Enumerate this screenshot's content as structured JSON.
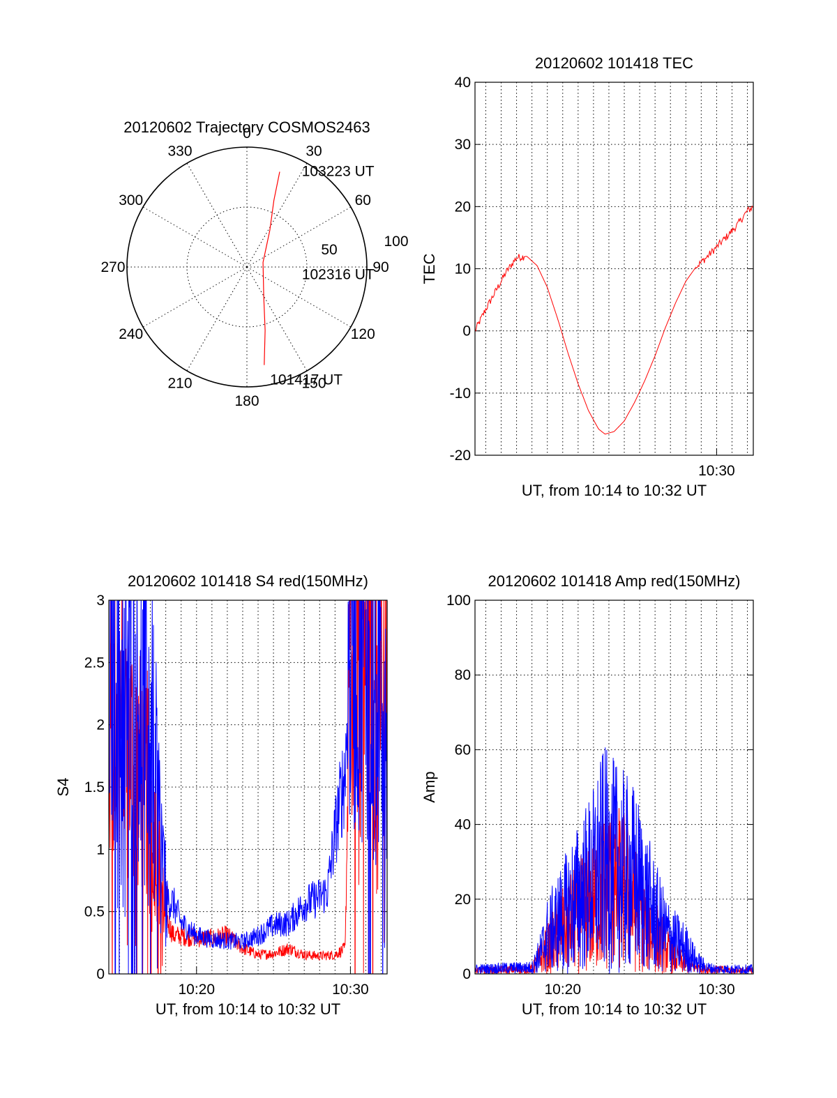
{
  "figure": {
    "title": ""
  },
  "chart_data": [
    {
      "id": "trajectory",
      "type": "polar",
      "title": "20120602 Trajectory COSMOS2463",
      "azimuth_labels": [
        "0",
        "30",
        "60",
        "90",
        "120",
        "150",
        "180",
        "210",
        "240",
        "270",
        "300",
        "330"
      ],
      "radius_labels": [
        "50",
        "100"
      ],
      "r_max": 100,
      "series": [
        {
          "color": "#ff0000",
          "points": [
            {
              "az": 19,
              "r": 84
            },
            {
              "az": 22,
              "r": 60
            },
            {
              "az": 32,
              "r": 36
            },
            {
              "az": 74,
              "r": 14
            },
            {
              "az": 150,
              "r": 28
            },
            {
              "az": 164,
              "r": 55
            },
            {
              "az": 170,
              "r": 83
            }
          ]
        }
      ],
      "annotations": [
        {
          "text": "103223 UT",
          "az": 29,
          "r": 92
        },
        {
          "text": "102316 UT",
          "az": 97,
          "r": 45
        },
        {
          "text": "101417 UT",
          "az": 169,
          "r": 95
        }
      ]
    },
    {
      "id": "tec",
      "type": "line",
      "title": "20120602 101418 TEC",
      "xlabel": "UT, from 10:14 to 10:32 UT",
      "ylabel": "TEC",
      "xlim": [
        "10:14:18",
        "10:32:23"
      ],
      "ylim": [
        -20,
        40
      ],
      "yticks": [
        "-20",
        "-10",
        "0",
        "10",
        "20",
        "30",
        "40"
      ],
      "xticks": [
        {
          "t": "10:30",
          "label": "10:30"
        }
      ],
      "grid": true,
      "series": [
        {
          "color": "#ff0000",
          "x": [
            "10:14:18",
            "10:15:00",
            "10:15:40",
            "10:16:20",
            "10:17:00",
            "10:17:40",
            "10:18:20",
            "10:19:00",
            "10:19:40",
            "10:20:20",
            "10:21:00",
            "10:21:40",
            "10:22:20",
            "10:22:45",
            "10:23:20",
            "10:24:00",
            "10:24:40",
            "10:25:20",
            "10:26:00",
            "10:26:40",
            "10:27:20",
            "10:28:00",
            "10:28:40",
            "10:29:20",
            "10:30:00",
            "10:30:40",
            "10:31:20",
            "10:32:00",
            "10:32:23"
          ],
          "values": [
            0,
            3.5,
            6.5,
            9.5,
            11.8,
            12.0,
            10.5,
            7.0,
            2.0,
            -3.5,
            -8.5,
            -12.8,
            -15.8,
            -16.6,
            -16.2,
            -14.5,
            -11.5,
            -8.0,
            -4.0,
            0.5,
            4.5,
            8.0,
            10.3,
            11.8,
            13.5,
            15.2,
            17.0,
            19.3,
            20.0
          ]
        }
      ]
    },
    {
      "id": "s4",
      "type": "line",
      "title": "20120602 101418 S4 red(150MHz)",
      "xlabel": "UT, from 10:14 to 10:32 UT",
      "ylabel": "S4",
      "xlim": [
        "10:14:18",
        "10:32:23"
      ],
      "ylim": [
        0,
        3
      ],
      "yticks": [
        "0",
        "0.5",
        "1",
        "1.5",
        "2",
        "2.5",
        "3"
      ],
      "xticks": [
        {
          "t": "10:20",
          "label": "10:20"
        },
        {
          "t": "10:30",
          "label": "10:30"
        }
      ],
      "grid": true,
      "series": [
        {
          "color": "#ff0000",
          "x": [
            "10:14:18",
            "10:15:00",
            "10:16:00",
            "10:17:00",
            "10:18:00",
            "10:18:30",
            "10:19:00",
            "10:20:00",
            "10:21:00",
            "10:22:00",
            "10:23:00",
            "10:24:00",
            "10:25:00",
            "10:26:00",
            "10:27:00",
            "10:28:00",
            "10:29:00",
            "10:29:40",
            "10:30:00",
            "10:31:00",
            "10:32:00",
            "10:32:23"
          ],
          "values": [
            1.8,
            2.0,
            1.6,
            1.4,
            0.45,
            0.3,
            0.3,
            0.28,
            0.28,
            0.3,
            0.2,
            0.15,
            0.16,
            0.2,
            0.15,
            0.14,
            0.15,
            0.2,
            2.8,
            2.6,
            2.3,
            1.9
          ]
        },
        {
          "color": "#0000ff",
          "x": [
            "10:14:18",
            "10:15:00",
            "10:16:00",
            "10:17:00",
            "10:18:00",
            "10:18:30",
            "10:19:00",
            "10:20:00",
            "10:21:00",
            "10:22:00",
            "10:23:00",
            "10:24:00",
            "10:25:00",
            "10:26:00",
            "10:27:00",
            "10:28:00",
            "10:28:30",
            "10:29:00",
            "10:29:40",
            "10:30:00",
            "10:31:00",
            "10:32:00",
            "10:32:23"
          ],
          "values": [
            2.4,
            2.5,
            2.2,
            2.0,
            0.6,
            0.55,
            0.4,
            0.3,
            0.27,
            0.26,
            0.25,
            0.3,
            0.38,
            0.4,
            0.55,
            0.6,
            0.65,
            1.1,
            1.6,
            2.7,
            2.6,
            2.4,
            2.3
          ]
        }
      ]
    },
    {
      "id": "amp",
      "type": "line",
      "title": "20120602 101418 Amp red(150MHz)",
      "xlabel": "UT, from 10:14 to 10:32 UT",
      "ylabel": "Amp",
      "xlim": [
        "10:14:18",
        "10:32:23"
      ],
      "ylim": [
        0,
        100
      ],
      "yticks": [
        "0",
        "20",
        "40",
        "60",
        "80",
        "100"
      ],
      "xticks": [
        {
          "t": "10:20",
          "label": "10:20"
        },
        {
          "t": "10:30",
          "label": "10:30"
        }
      ],
      "grid": true,
      "series": [
        {
          "color": "#ff0000",
          "x": [
            "10:14:18",
            "10:18:00",
            "10:19:00",
            "10:20:00",
            "10:21:00",
            "10:22:00",
            "10:23:00",
            "10:24:00",
            "10:25:00",
            "10:26:00",
            "10:27:00",
            "10:28:00",
            "10:29:00",
            "10:32:23"
          ],
          "values": [
            1,
            1.5,
            8,
            14,
            18,
            22,
            28,
            26,
            18,
            12,
            6,
            3,
            1.5,
            1
          ]
        },
        {
          "color": "#0000ff",
          "x": [
            "10:14:18",
            "10:16:00",
            "10:18:00",
            "10:18:30",
            "10:19:00",
            "10:20:00",
            "10:21:00",
            "10:22:00",
            "10:22:40",
            "10:23:20",
            "10:24:00",
            "10:24:40",
            "10:25:20",
            "10:26:00",
            "10:26:40",
            "10:27:20",
            "10:28:00",
            "10:28:40",
            "10:29:20",
            "10:30:00",
            "10:32:23"
          ],
          "values": [
            1.5,
            1.8,
            2,
            6,
            12,
            18,
            24,
            30,
            36,
            34,
            32,
            30,
            24,
            18,
            13,
            10,
            8,
            4,
            2,
            1.5,
            1.5
          ]
        }
      ]
    }
  ]
}
